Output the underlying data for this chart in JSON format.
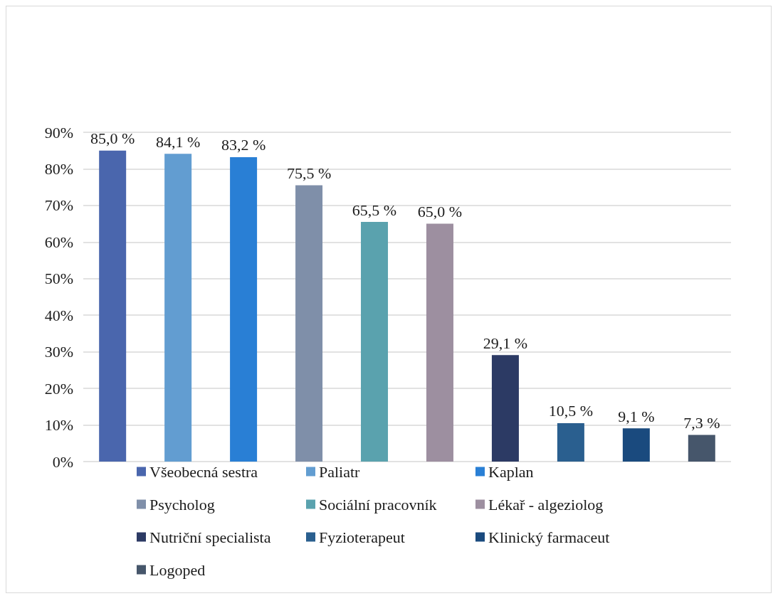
{
  "chart_data": {
    "type": "bar",
    "categories": [
      null
    ],
    "series": [
      {
        "name": "Všeobecná sestra",
        "color": "#4a66ad",
        "values": [
          85.0
        ],
        "value_labels": [
          "85,0 %"
        ]
      },
      {
        "name": "Paliatr",
        "color": "#629dd1",
        "values": [
          84.1
        ],
        "value_labels": [
          "84,1 %"
        ]
      },
      {
        "name": "Kaplan",
        "color": "#297fd5",
        "values": [
          83.2
        ],
        "value_labels": [
          "83,2 %"
        ]
      },
      {
        "name": "Psycholog",
        "color": "#7f8fa9",
        "values": [
          75.5
        ],
        "value_labels": [
          "75,5 %"
        ]
      },
      {
        "name": "Sociální pracovník",
        "color": "#5aa2ae",
        "values": [
          65.5
        ],
        "value_labels": [
          "65,5 %"
        ]
      },
      {
        "name": "Lékař - algeziolog",
        "color": "#9d8fa0",
        "values": [
          65.0
        ],
        "value_labels": [
          "65,0 %"
        ]
      },
      {
        "name": "Nutriční specialista",
        "color": "#2c3a64",
        "values": [
          29.1
        ],
        "value_labels": [
          "29,1 %"
        ]
      },
      {
        "name": "Fyzioterapeut",
        "color": "#2a5f8f",
        "values": [
          10.5
        ],
        "value_labels": [
          "10,5 %"
        ]
      },
      {
        "name": "Klinický farmaceut",
        "color": "#1a4a7e",
        "values": [
          9.1
        ],
        "value_labels": [
          "9,1 %"
        ]
      },
      {
        "name": "Logoped",
        "color": "#46566b",
        "values": [
          7.3
        ],
        "value_labels": [
          "7,3 %"
        ]
      }
    ],
    "ylim": [
      0,
      90
    ],
    "yticks": [
      {
        "value": 0,
        "label": "0%"
      },
      {
        "value": 10,
        "label": "10%"
      },
      {
        "value": 20,
        "label": "20%"
      },
      {
        "value": 30,
        "label": "30%"
      },
      {
        "value": 40,
        "label": "40%"
      },
      {
        "value": 50,
        "label": "50%"
      },
      {
        "value": 60,
        "label": "60%"
      },
      {
        "value": 70,
        "label": "70%"
      },
      {
        "value": 80,
        "label": "80%"
      },
      {
        "value": 90,
        "label": "90%"
      }
    ],
    "grid": "y",
    "legend": "bottom"
  }
}
